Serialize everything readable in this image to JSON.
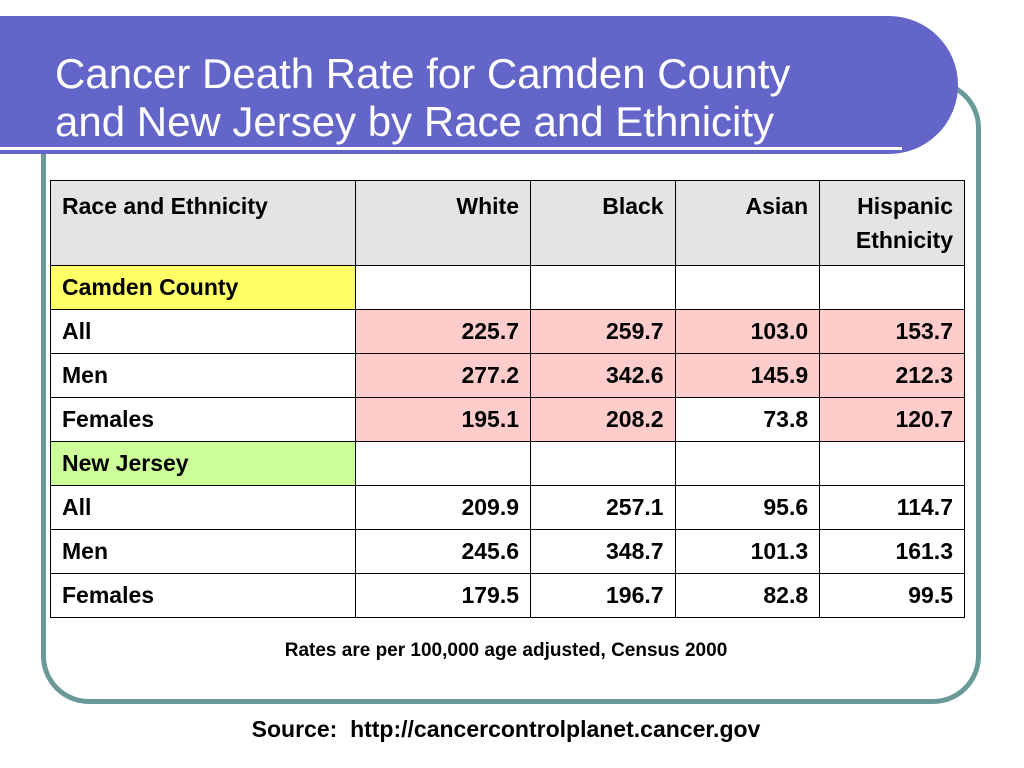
{
  "slide": {
    "title_line1": "Cancer Death Rate for Camden County",
    "title_line2": "and New Jersey by Race and Ethnicity",
    "footnote": "Rates are per 100,000 age adjusted, Census 2000",
    "source": "Source:  http://cancercontrolplanet.cancer.gov"
  },
  "colors": {
    "title_band": "#6366c8",
    "frame_border": "#6a9a98",
    "header_fill": "#e4e4e4",
    "camden_label_fill": "#ffff66",
    "nj_label_fill": "#ccff99",
    "highlight_fill": "#ffcccc"
  },
  "chart_data": {
    "type": "table",
    "columns": [
      "Race and Ethnicity",
      "White",
      "Black",
      "Asian",
      "Hispanic Ethnicity"
    ],
    "sections": [
      {
        "name": "Camden County",
        "rows": [
          {
            "label": "All",
            "values": [
              "225.7",
              "259.7",
              "103.0",
              "153.7"
            ],
            "highlight": [
              true,
              true,
              true,
              true
            ]
          },
          {
            "label": "Men",
            "values": [
              "277.2",
              "342.6",
              "145.9",
              "212.3"
            ],
            "highlight": [
              true,
              true,
              true,
              true
            ]
          },
          {
            "label": "Females",
            "values": [
              "195.1",
              "208.2",
              "73.8",
              "120.7"
            ],
            "highlight": [
              true,
              true,
              false,
              true
            ]
          }
        ]
      },
      {
        "name": "New Jersey",
        "rows": [
          {
            "label": "All",
            "values": [
              "209.9",
              "257.1",
              "95.6",
              "114.7"
            ],
            "highlight": [
              false,
              false,
              false,
              false
            ]
          },
          {
            "label": "Men",
            "values": [
              "245.6",
              "348.7",
              "101.3",
              "161.3"
            ],
            "highlight": [
              false,
              false,
              false,
              false
            ]
          },
          {
            "label": "Females",
            "values": [
              "179.5",
              "196.7",
              "82.8",
              "99.5"
            ],
            "highlight": [
              false,
              false,
              false,
              false
            ]
          }
        ]
      }
    ]
  }
}
